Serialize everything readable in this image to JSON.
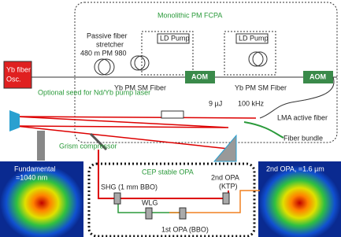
{
  "fcpa": {
    "title": "Monolithic PM FCPA",
    "stretcher": [
      "Passive fiber",
      "stretcher",
      "480 m PM 980"
    ],
    "ld_pumps": [
      "LD Pump",
      "LD Pump"
    ],
    "oscillator": [
      "Yb fiber",
      "Osc."
    ],
    "fibers": [
      "Yb PM SM Fiber",
      "Yb PM SM Fiber"
    ],
    "aoms": [
      "AOM",
      "AOM"
    ],
    "seed_note": "Optional seed for Nd/Yb pump laser",
    "lma_fiber": "LMA active fiber",
    "fiber_bundle": "Fiber bundle"
  },
  "output": {
    "energy": "9 µJ",
    "rate": "100 kHz"
  },
  "compressor": "Grism compressor",
  "opa": {
    "title": "CEP stable OPA",
    "shg": "SHG (1 mm BBO)",
    "wlg": "WLG",
    "opa1": "1st OPA (BBO)",
    "opa2": [
      "2nd OPA",
      "(KTP)"
    ]
  },
  "beam_profiles": {
    "fundamental": [
      "Fundamental",
      "=1040 nm"
    ],
    "second_opa": "2nd OPA, =1.6 µm"
  }
}
